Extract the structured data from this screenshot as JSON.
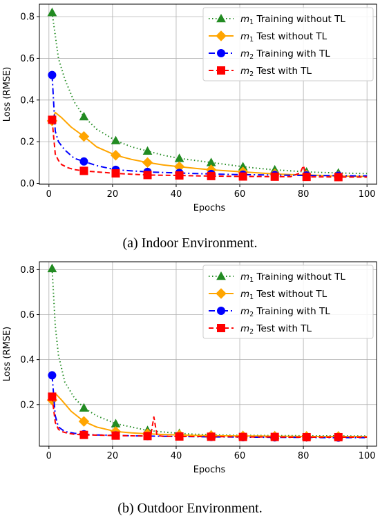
{
  "chart_data": [
    {
      "type": "line",
      "caption": "(a) Indoor Environment.",
      "xlabel": "Epochs",
      "ylabel": "Loss (RMSE)",
      "xlim": [
        -3,
        103
      ],
      "ylim": [
        -0.005,
        0.86
      ],
      "xticks": [
        "0",
        "20",
        "40",
        "60",
        "80",
        "100"
      ],
      "yticks": [
        "0.0",
        "0.2",
        "0.4",
        "0.6",
        "0.8"
      ],
      "grid": true,
      "legend_position": "top-right",
      "series": [
        {
          "name": "m1 Training without TL",
          "name_main": "m",
          "name_sub": "1",
          "name_rest": " Training without TL",
          "color": "#228B22",
          "style": "dotted",
          "marker": "triangle",
          "markers": [
            [
              1,
              0.82
            ],
            [
              11,
              0.32
            ],
            [
              21,
              0.205
            ],
            [
              31,
              0.155
            ],
            [
              41,
              0.12
            ],
            [
              51,
              0.1
            ],
            [
              61,
              0.08
            ],
            [
              71,
              0.065
            ],
            [
              81,
              0.055
            ],
            [
              91,
              0.05
            ]
          ],
          "x": [
            1,
            3,
            5,
            8,
            11,
            15,
            21,
            26,
            31,
            36,
            41,
            46,
            51,
            56,
            61,
            66,
            71,
            76,
            81,
            86,
            91,
            96,
            100
          ],
          "y": [
            0.82,
            0.6,
            0.5,
            0.39,
            0.32,
            0.26,
            0.205,
            0.175,
            0.155,
            0.135,
            0.12,
            0.11,
            0.1,
            0.09,
            0.08,
            0.072,
            0.065,
            0.06,
            0.055,
            0.052,
            0.05,
            0.048,
            0.047
          ]
        },
        {
          "name": "m1 Test without TL",
          "name_main": "m",
          "name_sub": "1",
          "name_rest": " Test without TL",
          "color": "#FFA500",
          "style": "solid",
          "marker": "diamond",
          "markers": [
            [
              1,
              0.3
            ],
            [
              11,
              0.225
            ],
            [
              21,
              0.135
            ],
            [
              31,
              0.1
            ],
            [
              41,
              0.08
            ],
            [
              51,
              0.065
            ],
            [
              61,
              0.055
            ],
            [
              71,
              0.045
            ],
            [
              81,
              0.04
            ],
            [
              91,
              0.035
            ]
          ],
          "x": [
            1,
            2,
            4,
            7,
            11,
            15,
            21,
            26,
            31,
            36,
            41,
            46,
            51,
            56,
            61,
            66,
            71,
            76,
            81,
            86,
            91,
            96,
            100
          ],
          "y": [
            0.3,
            0.34,
            0.315,
            0.27,
            0.225,
            0.175,
            0.135,
            0.115,
            0.1,
            0.088,
            0.08,
            0.072,
            0.065,
            0.06,
            0.055,
            0.05,
            0.045,
            0.042,
            0.04,
            0.038,
            0.035,
            0.034,
            0.033
          ]
        },
        {
          "name": "m2 Training with TL",
          "name_main": "m",
          "name_sub": "2",
          "name_rest": " Training with TL",
          "color": "#0000FF",
          "style": "dashdot",
          "marker": "circle",
          "markers": [
            [
              1,
              0.52
            ],
            [
              11,
              0.105
            ],
            [
              21,
              0.065
            ],
            [
              31,
              0.055
            ],
            [
              41,
              0.05
            ],
            [
              51,
              0.045
            ],
            [
              61,
              0.042
            ],
            [
              71,
              0.04
            ],
            [
              81,
              0.038
            ],
            [
              91,
              0.037
            ]
          ],
          "x": [
            1,
            2,
            3,
            5,
            8,
            11,
            15,
            21,
            26,
            31,
            36,
            41,
            46,
            51,
            56,
            61,
            66,
            71,
            76,
            81,
            86,
            91,
            96,
            100
          ],
          "y": [
            0.52,
            0.25,
            0.2,
            0.16,
            0.12,
            0.105,
            0.085,
            0.065,
            0.06,
            0.055,
            0.052,
            0.05,
            0.047,
            0.045,
            0.043,
            0.042,
            0.041,
            0.04,
            0.039,
            0.038,
            0.037,
            0.037,
            0.036,
            0.036
          ]
        },
        {
          "name": "m2 Test with TL",
          "name_main": "m",
          "name_sub": "2",
          "name_rest": " Test with TL",
          "color": "#FF0000",
          "style": "dashed",
          "marker": "square",
          "markers": [
            [
              1,
              0.305
            ],
            [
              11,
              0.06
            ],
            [
              21,
              0.048
            ],
            [
              31,
              0.04
            ],
            [
              41,
              0.038
            ],
            [
              51,
              0.035
            ],
            [
              61,
              0.033
            ],
            [
              71,
              0.032
            ],
            [
              81,
              0.031
            ],
            [
              91,
              0.03
            ]
          ],
          "x": [
            1,
            2,
            3,
            4,
            6,
            8,
            11,
            15,
            21,
            26,
            31,
            36,
            41,
            46,
            51,
            56,
            61,
            66,
            71,
            76,
            79,
            80,
            81,
            86,
            91,
            96,
            100
          ],
          "y": [
            0.305,
            0.14,
            0.11,
            0.09,
            0.075,
            0.066,
            0.06,
            0.055,
            0.048,
            0.044,
            0.04,
            0.039,
            0.038,
            0.036,
            0.035,
            0.034,
            0.033,
            0.033,
            0.032,
            0.032,
            0.05,
            0.085,
            0.031,
            0.031,
            0.03,
            0.03,
            0.03
          ]
        }
      ]
    },
    {
      "type": "line",
      "caption": "(b) Outdoor Environment.",
      "xlabel": "Epochs",
      "ylabel": "Loss (RMSE)",
      "xlim": [
        -3,
        103
      ],
      "ylim": [
        0.015,
        0.835
      ],
      "xticks": [
        "0",
        "20",
        "40",
        "60",
        "80",
        "100"
      ],
      "yticks": [
        "0.2",
        "0.4",
        "0.6",
        "0.8"
      ],
      "grid": true,
      "legend_position": "top-right",
      "series": [
        {
          "name": "m1 Training without TL",
          "name_main": "m",
          "name_sub": "1",
          "name_rest": " Training without TL",
          "color": "#228B22",
          "style": "dotted",
          "marker": "triangle",
          "markers": [
            [
              1,
              0.805
            ],
            [
              11,
              0.185
            ],
            [
              21,
              0.115
            ],
            [
              31,
              0.085
            ],
            [
              41,
              0.072
            ],
            [
              51,
              0.066
            ],
            [
              61,
              0.063
            ],
            [
              71,
              0.062
            ],
            [
              81,
              0.061
            ],
            [
              91,
              0.061
            ]
          ],
          "x": [
            1,
            2,
            3,
            5,
            8,
            11,
            15,
            21,
            26,
            31,
            36,
            41,
            46,
            51,
            56,
            61,
            66,
            71,
            76,
            81,
            86,
            91,
            96,
            100
          ],
          "y": [
            0.805,
            0.55,
            0.42,
            0.3,
            0.23,
            0.185,
            0.15,
            0.115,
            0.1,
            0.085,
            0.078,
            0.072,
            0.068,
            0.066,
            0.064,
            0.063,
            0.063,
            0.062,
            0.062,
            0.061,
            0.061,
            0.061,
            0.06,
            0.06
          ]
        },
        {
          "name": "m1 Test without TL",
          "name_main": "m",
          "name_sub": "1",
          "name_rest": " Test without TL",
          "color": "#FFA500",
          "style": "solid",
          "marker": "diamond",
          "markers": [
            [
              1,
              0.22
            ],
            [
              11,
              0.125
            ],
            [
              21,
              0.08
            ],
            [
              31,
              0.07
            ],
            [
              41,
              0.065
            ],
            [
              51,
              0.062
            ],
            [
              61,
              0.06
            ],
            [
              71,
              0.059
            ],
            [
              81,
              0.058
            ],
            [
              91,
              0.058
            ]
          ],
          "x": [
            1,
            2,
            4,
            7,
            11,
            15,
            21,
            26,
            31,
            36,
            41,
            46,
            51,
            56,
            61,
            66,
            71,
            76,
            81,
            86,
            91,
            96,
            100
          ],
          "y": [
            0.22,
            0.25,
            0.22,
            0.17,
            0.125,
            0.1,
            0.08,
            0.074,
            0.07,
            0.067,
            0.065,
            0.063,
            0.062,
            0.061,
            0.06,
            0.06,
            0.059,
            0.059,
            0.058,
            0.058,
            0.058,
            0.058,
            0.058
          ]
        },
        {
          "name": "m2 Training with TL",
          "name_main": "m",
          "name_sub": "2",
          "name_rest": " Training with TL",
          "color": "#0000FF",
          "style": "dashdot",
          "marker": "circle",
          "markers": [
            [
              1,
              0.33
            ],
            [
              11,
              0.068
            ],
            [
              21,
              0.063
            ],
            [
              31,
              0.06
            ],
            [
              41,
              0.058
            ],
            [
              51,
              0.056
            ],
            [
              61,
              0.055
            ],
            [
              71,
              0.054
            ],
            [
              81,
              0.054
            ],
            [
              91,
              0.053
            ]
          ],
          "x": [
            1,
            2,
            3,
            5,
            8,
            11,
            15,
            21,
            26,
            31,
            36,
            41,
            46,
            51,
            56,
            61,
            66,
            71,
            76,
            81,
            86,
            91,
            96,
            100
          ],
          "y": [
            0.33,
            0.15,
            0.1,
            0.08,
            0.072,
            0.068,
            0.065,
            0.063,
            0.061,
            0.06,
            0.059,
            0.058,
            0.057,
            0.056,
            0.056,
            0.055,
            0.055,
            0.054,
            0.054,
            0.054,
            0.053,
            0.053,
            0.053,
            0.053
          ]
        },
        {
          "name": "m2 Test with TL",
          "name_main": "m",
          "name_sub": "2",
          "name_rest": " Test with TL",
          "color": "#FF0000",
          "style": "dashed",
          "marker": "square",
          "markers": [
            [
              1,
              0.235
            ],
            [
              11,
              0.065
            ],
            [
              21,
              0.062
            ],
            [
              31,
              0.06
            ],
            [
              41,
              0.058
            ],
            [
              51,
              0.057
            ],
            [
              61,
              0.056
            ],
            [
              71,
              0.056
            ],
            [
              81,
              0.055
            ],
            [
              91,
              0.055
            ]
          ],
          "x": [
            1,
            2,
            3,
            4,
            6,
            8,
            11,
            15,
            21,
            26,
            31,
            32,
            33,
            34,
            36,
            41,
            46,
            51,
            56,
            61,
            66,
            71,
            76,
            81,
            86,
            91,
            96,
            100
          ],
          "y": [
            0.235,
            0.12,
            0.09,
            0.08,
            0.072,
            0.068,
            0.065,
            0.064,
            0.062,
            0.061,
            0.06,
            0.06,
            0.145,
            0.062,
            0.059,
            0.058,
            0.058,
            0.057,
            0.057,
            0.056,
            0.056,
            0.056,
            0.055,
            0.055,
            0.055,
            0.055,
            0.055,
            0.055
          ]
        }
      ]
    }
  ]
}
